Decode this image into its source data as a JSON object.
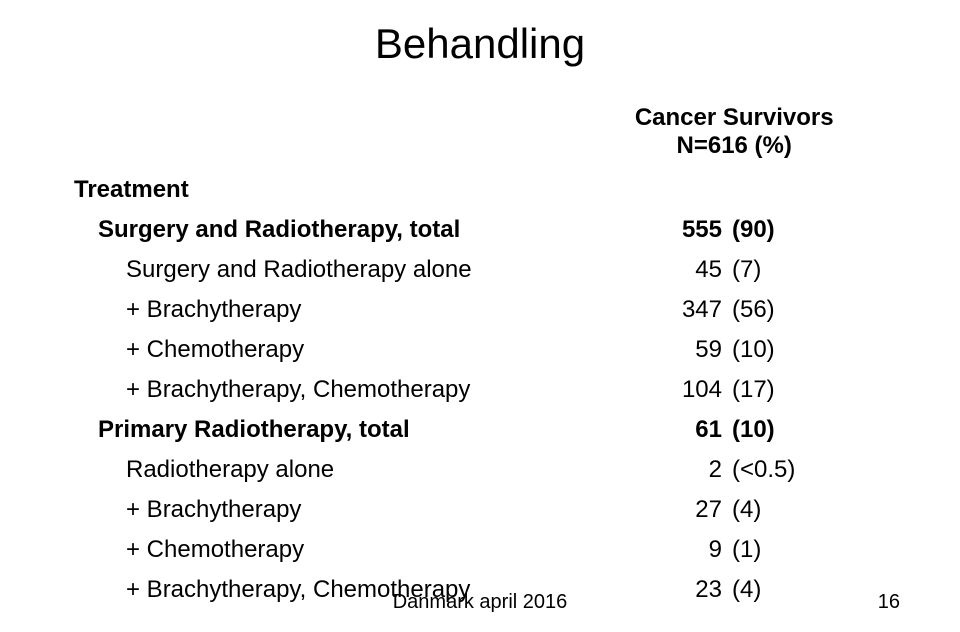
{
  "title": "Behandling",
  "header": {
    "line1": "Cancer Survivors",
    "line2": "N=616 (%)"
  },
  "section": "Treatment",
  "rows": [
    {
      "label": "Surgery and Radiotherapy, total",
      "n": "555",
      "pct": "(90)",
      "bold": true,
      "indent": 1
    },
    {
      "label": "Surgery and Radiotherapy alone",
      "n": "45",
      "pct": "(7)",
      "bold": false,
      "indent": 2
    },
    {
      "label": "+ Brachytherapy",
      "n": "347",
      "pct": "(56)",
      "bold": false,
      "indent": 2
    },
    {
      "label": "+ Chemotherapy",
      "n": "59",
      "pct": "(10)",
      "bold": false,
      "indent": 2
    },
    {
      "label": "+ Brachytherapy, Chemotherapy",
      "n": "104",
      "pct": "(17)",
      "bold": false,
      "indent": 2
    },
    {
      "label": "Primary Radiotherapy, total",
      "n": "61",
      "pct": "(10)",
      "bold": true,
      "indent": 1
    },
    {
      "label": "Radiotherapy alone",
      "n": "2",
      "pct": "(<0.5)",
      "bold": false,
      "indent": 2
    },
    {
      "label": "+ Brachytherapy",
      "n": "27",
      "pct": "(4)",
      "bold": false,
      "indent": 2
    },
    {
      "label": "+ Chemotherapy",
      "n": "9",
      "pct": "(1)",
      "bold": false,
      "indent": 2
    },
    {
      "label": "+ Brachytherapy, Chemotherapy",
      "n": "23",
      "pct": "(4)",
      "bold": false,
      "indent": 2
    }
  ],
  "footer": "Danmark april 2016",
  "pagenum": "16",
  "style": {
    "title_fontsize": 42,
    "body_fontsize": 24,
    "footer_fontsize": 20,
    "background": "#ffffff",
    "text_color": "#000000"
  }
}
